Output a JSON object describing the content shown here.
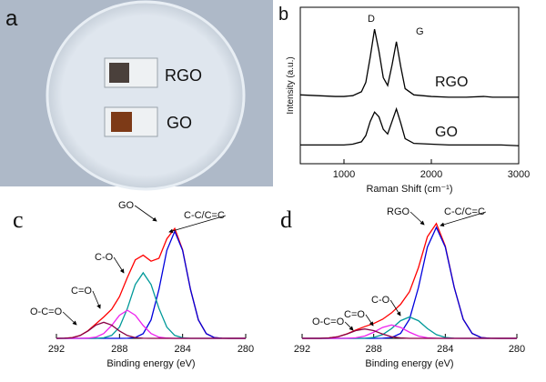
{
  "photo": {
    "panel": "a",
    "labels": [
      "RGO",
      "GO"
    ]
  },
  "chart_data": [
    {
      "type": "line",
      "panel": "b",
      "x_label": "Raman Shift (cm⁻¹)",
      "y_label": "Intensity (a.u.)",
      "xlim": [
        500,
        3000
      ],
      "xticks": [
        1000,
        2000,
        3000
      ],
      "ylim": [
        0,
        100
      ],
      "annotations": [
        "D",
        "G"
      ],
      "x": [
        500,
        700,
        900,
        1000,
        1100,
        1200,
        1250,
        1300,
        1350,
        1400,
        1450,
        1500,
        1550,
        1600,
        1650,
        1700,
        1800,
        2000,
        2200,
        2400,
        2600,
        2700,
        2800,
        3000
      ],
      "series": [
        {
          "name": "RGO",
          "color": "#000000",
          "values": [
            44,
            43.5,
            43,
            43,
            43.5,
            46,
            52,
            68,
            86,
            72,
            55,
            50,
            63,
            78,
            62,
            48,
            44,
            43,
            42.5,
            42.5,
            43,
            42.5,
            42.5,
            42.5
          ]
        },
        {
          "name": "GO",
          "color": "#000000",
          "values": [
            12,
            12,
            12,
            12,
            12.5,
            14,
            18,
            27,
            33,
            30,
            22,
            19,
            27,
            35,
            26,
            16,
            13,
            12.5,
            12,
            12,
            12,
            12,
            12,
            11.5
          ]
        }
      ]
    },
    {
      "type": "line",
      "panel": "c",
      "x_label": "Binding energy (eV)",
      "xlim": [
        292,
        280
      ],
      "xticks": [
        292,
        288,
        284,
        280
      ],
      "ylim": [
        0,
        100
      ],
      "x": [
        292,
        291.5,
        291,
        290.5,
        290,
        289.5,
        289,
        288.5,
        288,
        287.5,
        287,
        286.5,
        286,
        285.5,
        285,
        284.5,
        284,
        283.5,
        283,
        282.5,
        282,
        281.5,
        281,
        280.5,
        280
      ],
      "series": [
        {
          "name": "GO",
          "color": "#ff0000",
          "values": [
            0,
            0.1,
            0.5,
            2.1,
            5.7,
            10.8,
            16.0,
            21.7,
            31.2,
            45.6,
            58.7,
            62.2,
            57.7,
            59.9,
            74.4,
            82.2,
            66.2,
            36.6,
            13.8,
            3.5,
            0.6,
            0.1,
            0,
            0,
            0
          ]
        },
        {
          "name": "C-C/C=C",
          "color": "#0000dd",
          "values": [
            0,
            0,
            0,
            0,
            0,
            0,
            0,
            0,
            0,
            0.1,
            0.6,
            3.5,
            13.8,
            36.6,
            65.8,
            80,
            65.8,
            36.6,
            13.8,
            3.5,
            0.6,
            0.1,
            0,
            0,
            0
          ]
        },
        {
          "name": "C-O",
          "color": "#009999",
          "values": [
            0,
            0,
            0,
            0,
            0,
            0,
            0.4,
            2.2,
            8.4,
            22.4,
            40.3,
            49,
            40.3,
            22.4,
            8.4,
            2.2,
            0.4,
            0,
            0,
            0,
            0,
            0,
            0,
            0,
            0
          ]
        },
        {
          "name": "C=O",
          "color": "#ee22ee",
          "values": [
            0,
            0,
            0,
            0,
            0.2,
            0.9,
            3.6,
            9.6,
            17.3,
            21,
            17.3,
            9.6,
            3.6,
            0.9,
            0.2,
            0,
            0,
            0,
            0,
            0,
            0,
            0,
            0,
            0,
            0
          ]
        },
        {
          "name": "O-C=O",
          "color": "#880044",
          "values": [
            0,
            0.1,
            0.5,
            2.1,
            5.5,
            9.9,
            12,
            9.9,
            5.5,
            2.1,
            0.5,
            0.1,
            0,
            0,
            0,
            0,
            0,
            0,
            0,
            0,
            0,
            0,
            0,
            0,
            0
          ]
        }
      ]
    },
    {
      "type": "line",
      "panel": "d",
      "x_label": "Binding energy (eV)",
      "xlim": [
        292,
        280
      ],
      "xticks": [
        292,
        288,
        284,
        280
      ],
      "ylim": [
        0,
        100
      ],
      "x": [
        292,
        291.5,
        291,
        290.5,
        290,
        289.5,
        289,
        288.5,
        288,
        287.5,
        287,
        286.5,
        286,
        285.5,
        285,
        284.5,
        284,
        283.5,
        283,
        282.5,
        282,
        281.5,
        281,
        280.5,
        280
      ],
      "series": [
        {
          "name": "RGO",
          "color": "#ff0000",
          "values": [
            0,
            0,
            0,
            0.3,
            1.2,
            3.3,
            6.2,
            8.8,
            11.1,
            14.3,
            19.1,
            25.4,
            34.9,
            52.9,
            76.0,
            85.9,
            69.0,
            38.1,
            14.3,
            3.7,
            0.6,
            0.1,
            0,
            0,
            0
          ]
        },
        {
          "name": "C-C/C=C",
          "color": "#0000dd",
          "values": [
            0,
            0,
            0,
            0,
            0,
            0,
            0,
            0,
            0,
            0.1,
            0.6,
            3.7,
            14.3,
            38.0,
            68.3,
            83,
            68.3,
            38.0,
            14.3,
            3.7,
            0.6,
            0.1,
            0,
            0,
            0
          ]
        },
        {
          "name": "C-O",
          "color": "#009999",
          "values": [
            0,
            0,
            0,
            0,
            0,
            0,
            0,
            0.1,
            0.7,
            2.8,
            7.3,
            13.2,
            16,
            13.2,
            7.3,
            2.8,
            0.7,
            0.1,
            0,
            0,
            0,
            0,
            0,
            0,
            0
          ]
        },
        {
          "name": "C=O",
          "color": "#ee22ee",
          "values": [
            0,
            0,
            0,
            0,
            0,
            0.1,
            0.4,
            1.7,
            4.6,
            8.2,
            10,
            8.2,
            4.6,
            1.7,
            0.4,
            0.1,
            0,
            0,
            0,
            0,
            0,
            0,
            0,
            0,
            0
          ]
        },
        {
          "name": "O-C=O",
          "color": "#880044",
          "values": [
            0,
            0,
            0,
            0.3,
            1.2,
            3.2,
            5.8,
            7,
            5.8,
            3.2,
            1.2,
            0.3,
            0,
            0,
            0,
            0,
            0,
            0,
            0,
            0,
            0,
            0,
            0,
            0,
            0
          ]
        }
      ]
    }
  ]
}
